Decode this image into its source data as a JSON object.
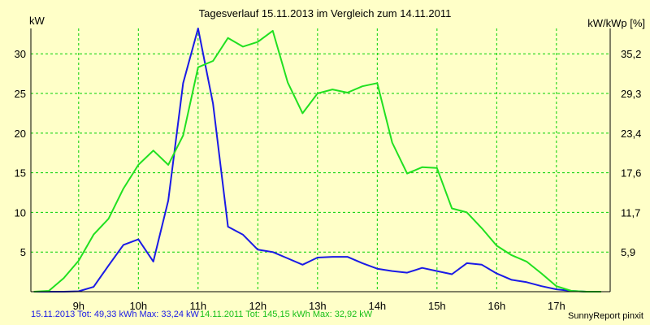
{
  "chart_data": {
    "type": "line",
    "title": "Tagesverlauf 15.11.2013 im Vergleich zum 14.11.2011",
    "ylabel": "kW",
    "y2label": "kW/kWp [%]",
    "x_tick_labels": [
      "9h",
      "10h",
      "11h",
      "12h",
      "13h",
      "14h",
      "15h",
      "16h",
      "17h"
    ],
    "x_tick_positions": [
      9,
      10,
      11,
      12,
      13,
      14,
      15,
      16,
      17
    ],
    "y_ticks": [
      5,
      10,
      15,
      20,
      25,
      30
    ],
    "y2_tick_labels": [
      "5,9",
      "11,7",
      "17,6",
      "23,4",
      "29,3",
      "35,2"
    ],
    "xlim": [
      8.2,
      17.9
    ],
    "ylim": [
      0,
      33.2
    ],
    "grid": true,
    "series": [
      {
        "name": "15.11.2013",
        "color": "#1A1AE6",
        "x": [
          8.25,
          8.5,
          8.75,
          9.0,
          9.25,
          9.5,
          9.75,
          10.0,
          10.25,
          10.5,
          10.75,
          11.0,
          11.25,
          11.5,
          11.75,
          12.0,
          12.25,
          12.5,
          12.75,
          13.0,
          13.25,
          13.5,
          13.75,
          14.0,
          14.25,
          14.5,
          14.75,
          15.0,
          15.25,
          15.5,
          15.75,
          16.0,
          16.25,
          16.5,
          16.75,
          17.0,
          17.25,
          17.5,
          17.75
        ],
        "y": [
          0.0,
          0.0,
          0.0,
          0.05,
          0.6,
          3.3,
          5.9,
          6.6,
          3.8,
          11.5,
          26.3,
          33.2,
          23.7,
          8.2,
          7.2,
          5.3,
          5.0,
          4.2,
          3.4,
          4.3,
          4.4,
          4.4,
          3.6,
          2.9,
          2.6,
          2.4,
          3.0,
          2.6,
          2.2,
          3.6,
          3.4,
          2.3,
          1.5,
          1.2,
          0.7,
          0.3,
          0.1,
          0.0,
          0.0
        ]
      },
      {
        "name": "14.11.2011",
        "color": "#20E020",
        "x": [
          8.25,
          8.5,
          8.75,
          9.0,
          9.25,
          9.5,
          9.75,
          10.0,
          10.25,
          10.5,
          10.75,
          11.0,
          11.25,
          11.5,
          11.75,
          12.0,
          12.25,
          12.5,
          12.75,
          13.0,
          13.25,
          13.5,
          13.75,
          14.0,
          14.25,
          14.5,
          14.75,
          15.0,
          15.25,
          15.5,
          15.75,
          16.0,
          16.25,
          16.5,
          16.75,
          17.0,
          17.25,
          17.5,
          17.75
        ],
        "y": [
          0.0,
          0.1,
          1.7,
          3.9,
          7.2,
          9.2,
          13.0,
          16.0,
          17.8,
          16.0,
          19.7,
          28.3,
          29.1,
          32.0,
          30.9,
          31.5,
          32.9,
          26.4,
          22.5,
          25.0,
          25.5,
          25.1,
          25.9,
          26.3,
          18.8,
          14.9,
          15.7,
          15.6,
          10.5,
          10.0,
          8.0,
          5.8,
          4.6,
          3.8,
          2.3,
          0.7,
          0.1,
          0.0,
          0.0
        ]
      }
    ]
  },
  "footer": {
    "series_a": "15.11.2013 Tot: 49,33 kWh Max: 33,24 kW",
    "series_b": "14.11.2011 Tot: 145,15 kWh Max: 32,92 kW",
    "brand": "SunnyReport pinxit"
  }
}
